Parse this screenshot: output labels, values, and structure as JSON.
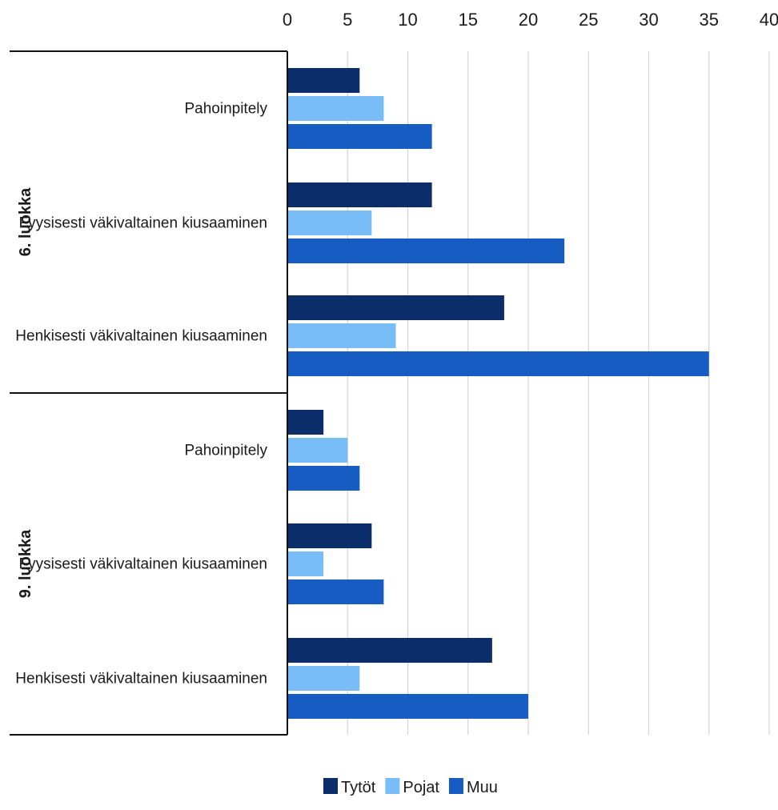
{
  "chart_data": {
    "type": "bar",
    "orientation": "horizontal",
    "xlim": [
      0,
      40
    ],
    "xticks": [
      "0",
      "5",
      "10",
      "15",
      "20",
      "25",
      "30",
      "35",
      "40"
    ],
    "grid": true,
    "legend_position": "bottom-center",
    "groups": [
      {
        "label": "6. luokka",
        "categories": [
          {
            "label": "Pahoinpitely",
            "values": [
              6,
              8,
              12
            ]
          },
          {
            "label": "Fyysisesti väkivaltainen kiusaaminen",
            "values": [
              12,
              7,
              23
            ]
          },
          {
            "label": "Henkisesti väkivaltainen kiusaaminen",
            "values": [
              18,
              9,
              35
            ]
          }
        ]
      },
      {
        "label": "9. luokka",
        "categories": [
          {
            "label": "Pahoinpitely",
            "values": [
              3,
              5,
              6
            ]
          },
          {
            "label": "Fyysisesti väkivaltainen kiusaaminen",
            "values": [
              7,
              3,
              8
            ]
          },
          {
            "label": "Henkisesti väkivaltainen kiusaaminen",
            "values": [
              17,
              6,
              20
            ]
          }
        ]
      }
    ],
    "series": [
      {
        "name": "Tytöt",
        "color": "#0b2e6b"
      },
      {
        "name": "Pojat",
        "color": "#78bdf7"
      },
      {
        "name": "Muu",
        "color": "#165cc2"
      }
    ]
  }
}
